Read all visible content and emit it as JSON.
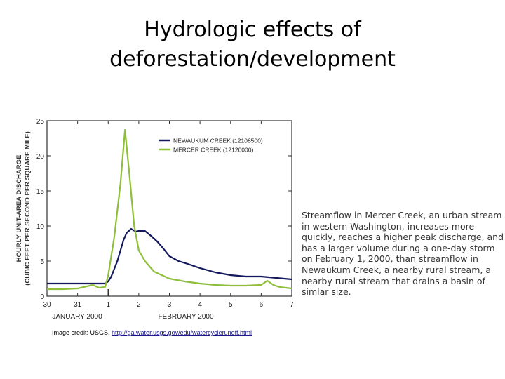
{
  "slide": {
    "title_line1": "Hydrologic effects of",
    "title_line2": "deforestation/development",
    "caption": "Streamflow in Mercer Creek, an urban stream in western Washington, increases more quickly, reaches a higher peak discharge, and has a larger volume during a one-day storm on February 1, 2000, than streamflow in Newaukum Creek, a nearby rural stream, a nearby rural stream that drains a basin of simlar size.",
    "credit_prefix": "Image credit: USGS, ",
    "credit_link": "http://ga.water.usgs.gov/edu/watercyclerunoff.html"
  },
  "chart_data": {
    "type": "line",
    "title": "",
    "xlabel_left": "JANUARY 2000",
    "xlabel_right": "FEBRUARY 2000",
    "ylabel_line1": "HOURLY UNIT-AREA DISCHARGE",
    "ylabel_line2": "(CUBIC FEET PER SECOND PER SQUARE MILE)",
    "x_ticks": [
      "30",
      "31",
      "1",
      "2",
      "3",
      "4",
      "5",
      "6",
      "7"
    ],
    "y_ticks": [
      "0",
      "5",
      "10",
      "15",
      "20",
      "25"
    ],
    "ylim": [
      0,
      25
    ],
    "xlim_days_from_jan30": [
      0,
      8
    ],
    "legend_position": "upper right",
    "series": [
      {
        "name": "NEWAUKUM CREEK (12108500)",
        "color": "#14195e",
        "x": [
          0,
          0.5,
          1,
          1.5,
          1.9,
          2.0,
          2.1,
          2.3,
          2.5,
          2.6,
          2.75,
          2.9,
          3.0,
          3.2,
          3.4,
          3.6,
          3.8,
          4.0,
          4.3,
          4.6,
          5.0,
          5.5,
          6.0,
          6.5,
          7.0,
          7.5,
          8.0
        ],
        "values": [
          1.8,
          1.8,
          1.8,
          1.8,
          1.8,
          2.1,
          2.8,
          5.0,
          8.0,
          9.0,
          9.6,
          9.2,
          9.3,
          9.3,
          8.6,
          7.8,
          6.8,
          5.7,
          5.0,
          4.6,
          4.0,
          3.4,
          3.0,
          2.8,
          2.8,
          2.6,
          2.4
        ]
      },
      {
        "name": "MERCER CREEK (12120000)",
        "color": "#8dbf3a",
        "x": [
          0,
          0.5,
          1,
          1.5,
          1.7,
          1.9,
          2.0,
          2.2,
          2.4,
          2.55,
          2.7,
          2.85,
          3.0,
          3.2,
          3.5,
          4.0,
          4.5,
          5.0,
          5.5,
          6.0,
          6.5,
          7.0,
          7.2,
          7.4,
          7.6,
          8.0
        ],
        "values": [
          1.0,
          1.0,
          1.1,
          1.6,
          1.2,
          1.3,
          3.0,
          8.5,
          16.0,
          23.7,
          17.0,
          10.0,
          6.5,
          5.0,
          3.5,
          2.5,
          2.1,
          1.8,
          1.6,
          1.5,
          1.5,
          1.6,
          2.2,
          1.6,
          1.3,
          1.1
        ]
      }
    ]
  }
}
